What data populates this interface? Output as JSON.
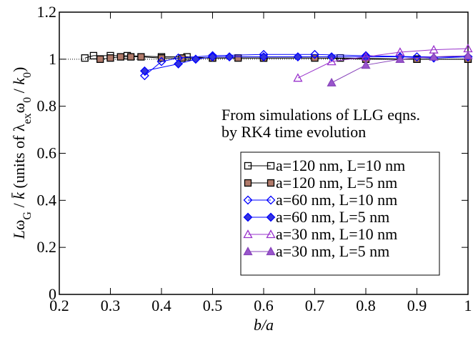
{
  "chart_data": {
    "type": "line",
    "xlabel": "b/a",
    "ylabel": [
      {
        "text": "L",
        "italic": true
      },
      {
        "text": "ω"
      },
      {
        "text": "G",
        "sub": true
      },
      {
        "text": " / "
      },
      {
        "text": "k̄",
        "italic": true
      },
      {
        "text": "  (units of "
      },
      {
        "text": "λ"
      },
      {
        "text": "ex",
        "sub": true
      },
      {
        "text": "ω"
      },
      {
        "text": "0",
        "sub": true
      },
      {
        "text": " / "
      },
      {
        "text": "k",
        "italic": true
      },
      {
        "text": "0",
        "sub": true
      },
      {
        "text": ")"
      }
    ],
    "annotation": [
      "From simulations of LLG eqns.",
      "by RK4 time evolution"
    ],
    "xlim": [
      0.2,
      1
    ],
    "ylim": [
      0,
      1.2
    ],
    "xticks": [
      0.2,
      0.3,
      0.4,
      0.5,
      0.6,
      0.7,
      0.8,
      0.9,
      1
    ],
    "yticks": [
      0,
      0.2,
      0.4,
      0.6,
      0.8,
      1,
      1.2
    ],
    "hline": 1,
    "series": [
      {
        "name": "a=120 nm, L=10 nm",
        "color": "#000000",
        "marker": "square",
        "fill": "none",
        "x": [
          0.25,
          0.267,
          0.3,
          0.333,
          0.4,
          0.45,
          0.5,
          0.6,
          0.75,
          0.9,
          1
        ],
        "values": [
          1.005,
          1.015,
          1.015,
          1.015,
          1.01,
          1.01,
          1.005,
          1.005,
          1.005,
          1,
          1
        ]
      },
      {
        "name": "a=120 nm, L=5 nm",
        "color": "#000000",
        "marker": "square",
        "fill": "#b07a6a",
        "x": [
          0.28,
          0.3,
          0.32,
          0.34,
          0.36,
          0.4,
          0.44,
          0.5,
          0.55,
          0.6,
          0.7,
          0.8,
          0.9,
          1
        ],
        "values": [
          1,
          1.005,
          1.01,
          1.01,
          1.01,
          1.005,
          1.005,
          1.005,
          1.005,
          1.005,
          1.005,
          1,
          1,
          1
        ]
      },
      {
        "name": "a=60 nm, L=10 nm",
        "color": "#0000ff",
        "marker": "diamond",
        "fill": "none",
        "x": [
          0.367,
          0.4,
          0.433,
          0.5,
          0.6,
          0.7,
          0.8,
          0.9,
          1
        ],
        "values": [
          0.93,
          0.99,
          1.005,
          1.015,
          1.02,
          1.02,
          1.015,
          1.01,
          1.01
        ]
      },
      {
        "name": "a=60 nm, L=5 nm",
        "color": "#0000ff",
        "marker": "diamond",
        "fill": "#3333dd",
        "x": [
          0.367,
          0.433,
          0.467,
          0.5,
          0.533,
          0.6,
          0.667,
          0.733,
          0.8,
          0.867,
          0.933,
          1
        ],
        "values": [
          0.95,
          0.98,
          1,
          1.01,
          1.01,
          1.01,
          1.01,
          1.01,
          1.01,
          1.01,
          1.005,
          1.01
        ]
      },
      {
        "name": "a=30 nm, L=10 nm",
        "color": "#9933cc",
        "marker": "triangle",
        "fill": "none",
        "x": [
          0.667,
          0.733,
          0.8,
          0.867,
          0.933,
          1
        ],
        "values": [
          0.92,
          0.99,
          1.01,
          1.03,
          1.04,
          1.045
        ]
      },
      {
        "name": "a=30 nm, L=5 nm",
        "color": "#8844bb",
        "marker": "triangle",
        "fill": "#9955cc",
        "x": [
          0.733,
          0.8,
          0.867,
          0.933,
          1
        ],
        "values": [
          0.9,
          0.975,
          1,
          1.01,
          1.015
        ]
      }
    ]
  }
}
